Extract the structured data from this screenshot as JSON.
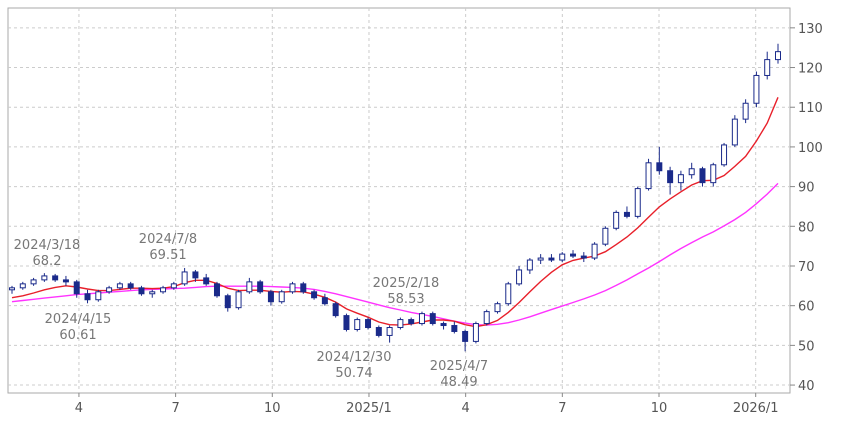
{
  "chart_data": {
    "type": "candlestick",
    "x_ticks": [
      "4",
      "7",
      "10",
      "2025/1",
      "4",
      "7",
      "10",
      "2026/1"
    ],
    "y_ticks": [
      "40",
      "50",
      "60",
      "70",
      "80",
      "90",
      "100",
      "110",
      "120",
      "130"
    ],
    "ylim": [
      38,
      135
    ],
    "grid": true,
    "colors": {
      "up_candle": "#ffffff",
      "down_candle": "#1a2a8a",
      "candle_outline": "#1a2a8a",
      "short_ma": "#e8202a",
      "long_ma": "#ff33ff",
      "grid": "#cccccc"
    },
    "candles": [
      [
        64,
        65,
        63,
        64.5
      ],
      [
        64.5,
        66,
        64,
        65.5
      ],
      [
        65.5,
        67,
        65,
        66.5
      ],
      [
        66.5,
        68.2,
        66,
        67.5
      ],
      [
        67.5,
        68,
        66,
        66.5
      ],
      [
        66.5,
        67.5,
        65,
        66
      ],
      [
        66,
        66.5,
        62,
        63
      ],
      [
        63,
        64,
        60.6,
        61.5
      ],
      [
        61.5,
        64,
        61,
        63.5
      ],
      [
        63.5,
        65,
        63,
        64.5
      ],
      [
        64.5,
        66,
        64,
        65.5
      ],
      [
        65.5,
        66,
        64,
        64.5
      ],
      [
        64.5,
        65,
        62.5,
        63
      ],
      [
        63,
        64,
        62,
        63.5
      ],
      [
        63.5,
        65,
        63,
        64.5
      ],
      [
        64.5,
        66,
        64,
        65.5
      ],
      [
        65.5,
        69.5,
        65,
        68.5
      ],
      [
        68.5,
        69,
        66,
        67
      ],
      [
        67,
        68,
        65,
        65.5
      ],
      [
        65.5,
        66,
        62,
        62.5
      ],
      [
        62.5,
        63,
        58.5,
        59.5
      ],
      [
        59.5,
        64,
        59,
        63.5
      ],
      [
        63.5,
        67,
        63,
        66
      ],
      [
        66,
        66.5,
        63,
        63.5
      ],
      [
        63.5,
        64,
        60,
        61
      ],
      [
        61,
        64,
        60.5,
        63.5
      ],
      [
        63.5,
        66,
        63,
        65.5
      ],
      [
        65.5,
        66,
        63,
        63.5
      ],
      [
        63.5,
        64,
        61.5,
        62
      ],
      [
        62,
        63,
        60,
        60.5
      ],
      [
        60.5,
        61,
        57,
        57.5
      ],
      [
        57.5,
        58,
        53.5,
        54
      ],
      [
        54,
        57,
        53.5,
        56.5
      ],
      [
        56.5,
        57,
        54,
        54.5
      ],
      [
        54.5,
        55,
        52,
        52.5
      ],
      [
        52.5,
        55,
        50.7,
        54.5
      ],
      [
        54.5,
        57,
        54,
        56.5
      ],
      [
        56.5,
        57,
        55,
        55.5
      ],
      [
        55.5,
        58.5,
        55,
        58
      ],
      [
        58,
        58.5,
        55,
        55.5
      ],
      [
        55.5,
        56,
        54,
        55
      ],
      [
        55,
        56,
        53,
        53.5
      ],
      [
        53.5,
        54,
        48.5,
        51
      ],
      [
        51,
        56,
        50.5,
        55.5
      ],
      [
        55.5,
        59,
        55,
        58.5
      ],
      [
        58.5,
        61,
        58,
        60.5
      ],
      [
        60.5,
        66,
        60,
        65.5
      ],
      [
        65.5,
        70,
        65,
        69
      ],
      [
        69,
        72,
        68,
        71.5
      ],
      [
        71.5,
        73,
        70.5,
        72
      ],
      [
        72,
        73,
        71,
        71.5
      ],
      [
        71.5,
        73.5,
        71,
        73
      ],
      [
        73,
        74,
        72,
        72.5
      ],
      [
        72.5,
        73.5,
        71,
        72
      ],
      [
        72,
        76,
        71.5,
        75.5
      ],
      [
        75.5,
        80,
        75,
        79.5
      ],
      [
        79.5,
        84,
        79,
        83.5
      ],
      [
        83.5,
        85,
        82,
        82.5
      ],
      [
        82.5,
        90,
        82,
        89.5
      ],
      [
        89.5,
        97,
        89,
        96
      ],
      [
        96,
        100,
        93,
        94
      ],
      [
        94,
        95,
        88,
        91
      ],
      [
        91,
        94,
        89,
        93
      ],
      [
        93,
        96,
        92,
        94.5
      ],
      [
        94.5,
        95,
        90,
        91
      ],
      [
        91,
        96,
        90,
        95.5
      ],
      [
        95.5,
        101,
        95,
        100.5
      ],
      [
        100.5,
        108,
        100,
        107
      ],
      [
        107,
        112,
        106,
        111
      ],
      [
        111,
        119,
        110,
        118
      ],
      [
        118,
        124,
        117,
        122
      ],
      [
        122,
        126,
        121,
        124
      ]
    ],
    "short_ma": [
      62,
      62.5,
      63.2,
      64,
      64.6,
      65,
      64.7,
      64.2,
      63.8,
      63.8,
      64.1,
      64.4,
      64.4,
      64.3,
      64.4,
      64.8,
      65.8,
      66.4,
      66.4,
      65.6,
      64.4,
      63.8,
      63.9,
      63.9,
      63.6,
      63.4,
      63.6,
      63.5,
      62.9,
      62.1,
      60.9,
      59.2,
      58.1,
      57.1,
      55.9,
      55.2,
      55.1,
      55.4,
      55.9,
      56.4,
      56.4,
      56.1,
      55.2,
      54.7,
      55.2,
      56.3,
      58.3,
      60.8,
      63.5,
      66.1,
      68.4,
      70.3,
      71.4,
      72,
      72.5,
      73.6,
      75.4,
      77.3,
      79.6,
      82.3,
      84.9,
      86.9,
      88.7,
      90.4,
      91.5,
      91.6,
      92.8,
      95.1,
      97.6,
      101.5,
      106,
      112.5
    ],
    "long_ma": [
      61,
      61.3,
      61.6,
      61.9,
      62.2,
      62.5,
      62.8,
      63,
      63.2,
      63.4,
      63.6,
      63.8,
      64,
      64.1,
      64.2,
      64.3,
      64.4,
      64.6,
      64.8,
      64.9,
      64.9,
      64.9,
      64.9,
      64.9,
      64.8,
      64.7,
      64.6,
      64.4,
      64.1,
      63.6,
      63,
      62.3,
      61.6,
      60.9,
      60.2,
      59.5,
      58.9,
      58.3,
      57.8,
      57.3,
      56.7,
      56.1,
      55.6,
      55.2,
      55.1,
      55.3,
      55.7,
      56.4,
      57.2,
      58.1,
      59,
      59.9,
      60.8,
      61.7,
      62.7,
      63.8,
      65.1,
      66.5,
      68,
      69.5,
      71.1,
      72.8,
      74.4,
      75.9,
      77.3,
      78.6,
      80.1,
      81.7,
      83.5,
      85.7,
      88.1,
      90.8
    ]
  },
  "annotations": [
    {
      "date": "2024/3/18",
      "value": "68.2"
    },
    {
      "date": "2024/4/15",
      "value": "60.61"
    },
    {
      "date": "2024/7/8",
      "value": "69.51"
    },
    {
      "date": "2024/12/30",
      "value": "50.74"
    },
    {
      "date": "2025/2/18",
      "value": "58.53"
    },
    {
      "date": "2025/4/7",
      "value": "48.49"
    }
  ]
}
